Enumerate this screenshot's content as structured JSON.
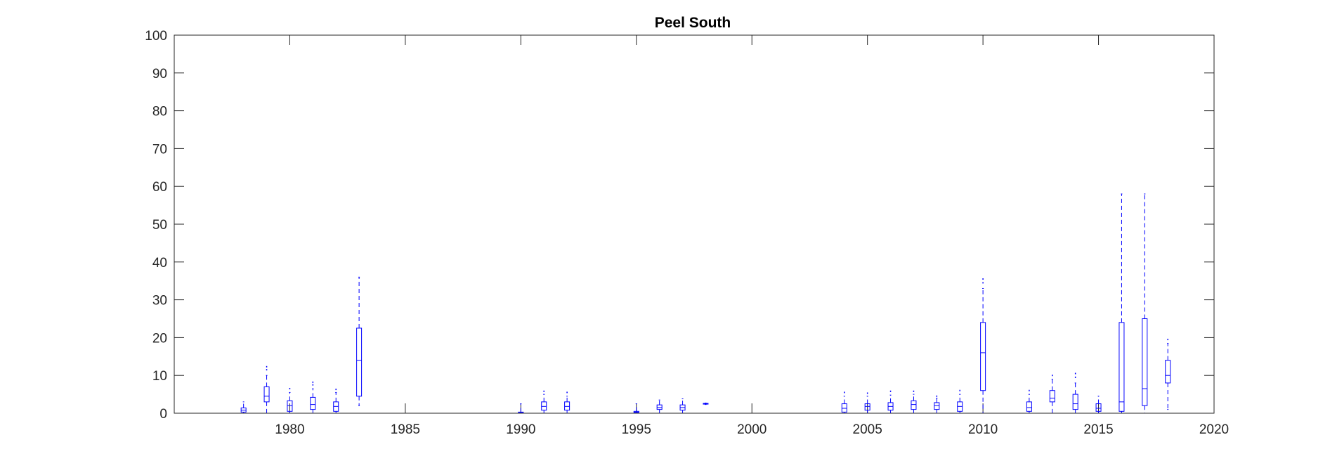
{
  "chart_data": {
    "type": "box",
    "title": "Peel South",
    "xlabel": "",
    "ylabel": "",
    "xlim": [
      1975,
      2020
    ],
    "ylim": [
      0,
      100
    ],
    "xticks": [
      1980,
      1985,
      1990,
      1995,
      2000,
      2005,
      2010,
      2015,
      2020
    ],
    "yticks": [
      0,
      10,
      20,
      30,
      40,
      50,
      60,
      70,
      80,
      90,
      100
    ],
    "grid": false,
    "colors": {
      "box": "#0000ff",
      "axes": "#262626"
    },
    "boxes": [
      {
        "year": 1978,
        "min": 0.0,
        "q1": 0.3,
        "median": 0.8,
        "q3": 1.4,
        "max": 3.0,
        "outliers": []
      },
      {
        "year": 1979,
        "min": 0.0,
        "q1": 3.0,
        "median": 4.5,
        "q3": 7.0,
        "max": 10.0,
        "outliers": [
          11.5,
          12.3
        ]
      },
      {
        "year": 1980,
        "min": 0.0,
        "q1": 0.5,
        "median": 2.0,
        "q3": 3.3,
        "max": 5.5,
        "outliers": [
          6.5
        ]
      },
      {
        "year": 1981,
        "min": 0.0,
        "q1": 1.0,
        "median": 2.3,
        "q3": 4.2,
        "max": 6.5,
        "outliers": [
          7.5,
          8.2
        ]
      },
      {
        "year": 1982,
        "min": 0.0,
        "q1": 0.5,
        "median": 1.8,
        "q3": 3.0,
        "max": 5.5,
        "outliers": [
          6.3
        ]
      },
      {
        "year": 1983,
        "min": 2.0,
        "q1": 4.5,
        "median": 14.0,
        "q3": 22.5,
        "max": 36.0,
        "outliers": []
      },
      {
        "year": 1990,
        "min": 0.0,
        "q1": 0.0,
        "median": 0.1,
        "q3": 0.3,
        "max": 2.5,
        "outliers": []
      },
      {
        "year": 1991,
        "min": 0.0,
        "q1": 0.8,
        "median": 1.8,
        "q3": 3.0,
        "max": 5.0,
        "outliers": [
          5.8
        ]
      },
      {
        "year": 1992,
        "min": 0.0,
        "q1": 0.8,
        "median": 1.8,
        "q3": 3.0,
        "max": 4.5,
        "outliers": [
          5.5
        ]
      },
      {
        "year": 1995,
        "min": 0.0,
        "q1": 0.1,
        "median": 0.3,
        "q3": 0.5,
        "max": 2.5,
        "outliers": []
      },
      {
        "year": 1996,
        "min": 0.0,
        "q1": 1.0,
        "median": 1.5,
        "q3": 2.2,
        "max": 3.5,
        "outliers": []
      },
      {
        "year": 1997,
        "min": 0.0,
        "q1": 0.8,
        "median": 1.5,
        "q3": 2.2,
        "max": 3.8,
        "outliers": []
      },
      {
        "year": 1998,
        "min": 2.3,
        "q1": 2.4,
        "median": 2.5,
        "q3": 2.6,
        "max": 2.7,
        "outliers": []
      },
      {
        "year": 2004,
        "min": 0.0,
        "q1": 0.3,
        "median": 1.3,
        "q3": 2.5,
        "max": 4.5,
        "outliers": [
          5.5
        ]
      },
      {
        "year": 2005,
        "min": 0.0,
        "q1": 0.8,
        "median": 1.8,
        "q3": 2.5,
        "max": 4.5,
        "outliers": [
          5.3
        ]
      },
      {
        "year": 2006,
        "min": 0.0,
        "q1": 0.8,
        "median": 1.8,
        "q3": 2.8,
        "max": 4.8,
        "outliers": [
          5.8
        ]
      },
      {
        "year": 2007,
        "min": 0.0,
        "q1": 1.0,
        "median": 2.3,
        "q3": 3.3,
        "max": 5.0,
        "outliers": [
          5.8
        ]
      },
      {
        "year": 2008,
        "min": 0.0,
        "q1": 1.0,
        "median": 2.0,
        "q3": 2.8,
        "max": 4.0,
        "outliers": [
          4.5
        ]
      },
      {
        "year": 2009,
        "min": 0.0,
        "q1": 0.5,
        "median": 1.8,
        "q3": 3.0,
        "max": 5.0,
        "outliers": [
          6.0
        ]
      },
      {
        "year": 2010,
        "min": 0.0,
        "q1": 6.0,
        "median": 16.0,
        "q3": 24.0,
        "max": 33.0,
        "outliers": [
          34.5,
          35.5
        ]
      },
      {
        "year": 2012,
        "min": 0.0,
        "q1": 0.5,
        "median": 1.5,
        "q3": 3.0,
        "max": 5.0,
        "outliers": [
          6.0
        ]
      },
      {
        "year": 2013,
        "min": 0.0,
        "q1": 3.0,
        "median": 4.0,
        "q3": 6.0,
        "max": 9.0,
        "outliers": [
          10.0
        ]
      },
      {
        "year": 2014,
        "min": 0.0,
        "q1": 1.0,
        "median": 2.5,
        "q3": 5.0,
        "max": 8.0,
        "outliers": [
          9.5,
          10.5
        ]
      },
      {
        "year": 2015,
        "min": 0.0,
        "q1": 0.5,
        "median": 1.3,
        "q3": 2.5,
        "max": 4.5,
        "outliers": []
      },
      {
        "year": 2016,
        "min": 0.0,
        "q1": 0.5,
        "median": 3.0,
        "q3": 24.0,
        "max": 58.0,
        "outliers": []
      },
      {
        "year": 2017,
        "min": 0.0,
        "q1": 2.0,
        "median": 6.5,
        "q3": 25.0,
        "max": 58.0,
        "outliers": []
      },
      {
        "year": 2018,
        "min": 1.0,
        "q1": 8.0,
        "median": 10.0,
        "q3": 14.0,
        "max": 18.5,
        "outliers": [
          19.5
        ]
      }
    ]
  }
}
